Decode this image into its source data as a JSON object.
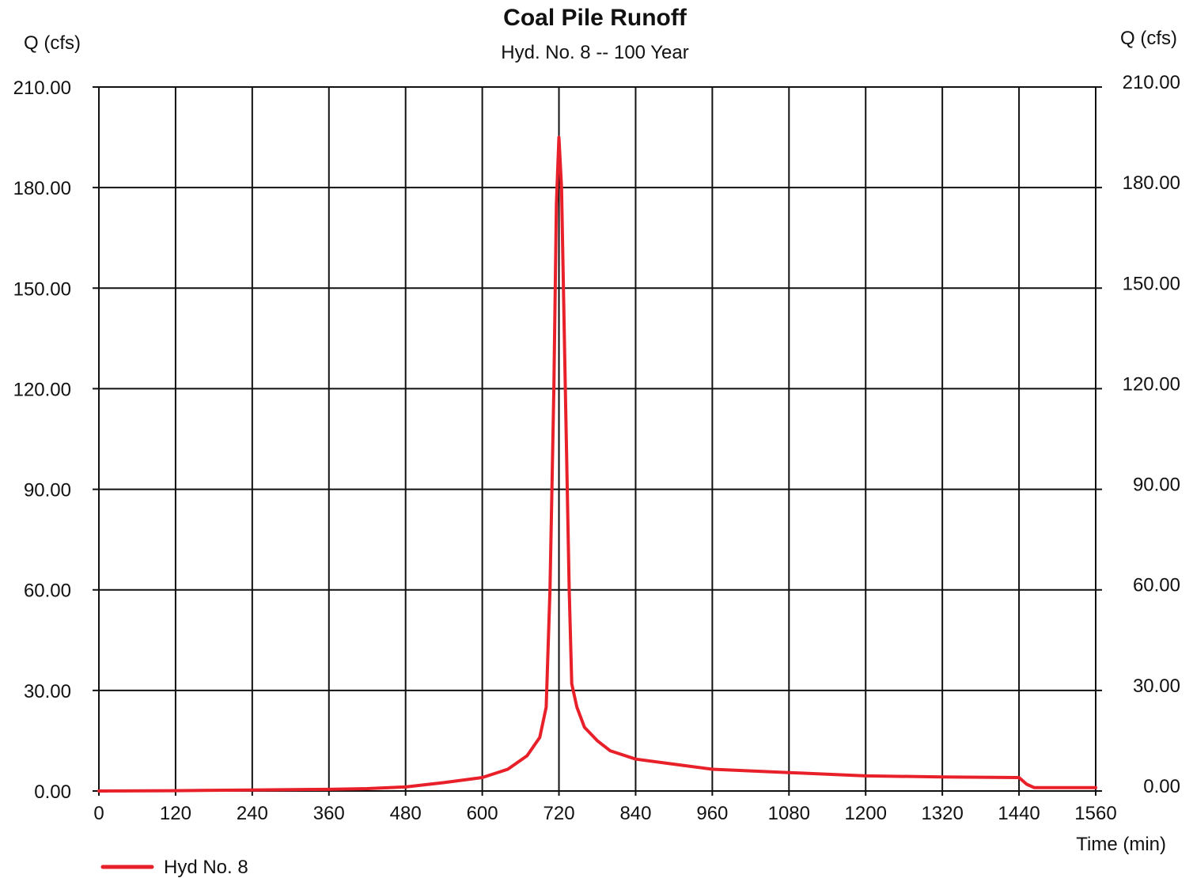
{
  "chart_data": {
    "type": "line",
    "title": "Coal Pile Runoff",
    "subtitle": "Hyd. No. 8 -- 100 Year",
    "ylabel_left": "Q (cfs)",
    "ylabel_right": "Q (cfs)",
    "xlabel": "Time (min)",
    "xlim": [
      0,
      1560
    ],
    "ylim": [
      0,
      210
    ],
    "x_ticks": [
      0,
      120,
      240,
      360,
      480,
      600,
      720,
      840,
      960,
      1080,
      1200,
      1320,
      1440,
      1560
    ],
    "x_tick_labels": [
      "0",
      "120",
      "240",
      "360",
      "480",
      "600",
      "720",
      "840",
      "960",
      "1080",
      "1200",
      "1320",
      "1440",
      "1560"
    ],
    "y_ticks": [
      0,
      30,
      60,
      90,
      120,
      150,
      180,
      210
    ],
    "y_tick_labels": [
      "0.00",
      "30.00",
      "60.00",
      "90.00",
      "120.00",
      "150.00",
      "180.00",
      "210.00"
    ],
    "grid": true,
    "legend_position": "bottom-left",
    "series": [
      {
        "name": "Hyd No. 8",
        "color": "#e8202a",
        "x": [
          0,
          120,
          240,
          360,
          420,
          480,
          540,
          600,
          640,
          670,
          690,
          700,
          706,
          712,
          716,
          720,
          724,
          730,
          736,
          740,
          748,
          760,
          780,
          800,
          840,
          900,
          960,
          1080,
          1200,
          1320,
          1440,
          1452,
          1464,
          1560
        ],
        "y": [
          0.0,
          0.1,
          0.3,
          0.5,
          0.7,
          1.2,
          2.5,
          4.0,
          6.5,
          10.5,
          16.0,
          25.0,
          60.0,
          120.0,
          175.0,
          195.0,
          180.0,
          120.0,
          60.0,
          32.0,
          25.0,
          19.0,
          15.0,
          12.0,
          9.5,
          8.0,
          6.5,
          5.5,
          4.5,
          4.2,
          4.0,
          2.0,
          1.0,
          1.0
        ]
      }
    ]
  }
}
